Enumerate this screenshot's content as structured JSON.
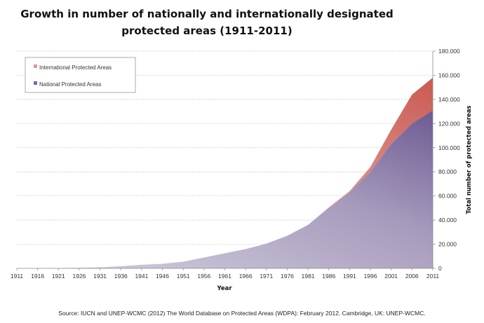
{
  "chart_data": {
    "type": "area",
    "stacked": true,
    "title": "Growth in number of nationally and internationally designated protected areas (1911-2011)",
    "title_lines": [
      "Growth in number of nationally and internationally designated",
      "protected areas (1911-2011)"
    ],
    "xlabel": "Year",
    "ylabel": "Total number of protected areas",
    "x": [
      1911,
      1916,
      1921,
      1926,
      1931,
      1936,
      1941,
      1946,
      1951,
      1956,
      1961,
      1966,
      1971,
      1976,
      1981,
      1986,
      1991,
      1996,
      2001,
      2006,
      2011
    ],
    "series": [
      {
        "name": "National Protected Areas",
        "color": "#7a6a9c",
        "values": [
          0,
          100,
          200,
          500,
          900,
          1800,
          3000,
          3800,
          5500,
          9000,
          12500,
          16000,
          20500,
          27000,
          36000,
          50000,
          63000,
          80000,
          103000,
          120000,
          131000
        ]
      },
      {
        "name": "International Protected Areas",
        "color": "#d5756b",
        "values": [
          0,
          0,
          0,
          0,
          0,
          0,
          0,
          0,
          0,
          0,
          0,
          0,
          0,
          0,
          0,
          500,
          1000,
          4000,
          12000,
          24000,
          27000
        ]
      }
    ],
    "xticks": [
      "1911",
      "1916",
      "1921",
      "1926",
      "1931",
      "1936",
      "1941",
      "1946",
      "1951",
      "1956",
      "1961",
      "1966",
      "1971",
      "1976",
      "1981",
      "1986",
      "1991",
      "1996",
      "2001",
      "2006",
      "2011"
    ],
    "yticks": [
      "0",
      "20.000",
      "40.000",
      "60.000",
      "80.000",
      "100.000",
      "120.000",
      "140.000",
      "160.000",
      "180.000"
    ],
    "xlim": [
      1911,
      2011
    ],
    "ylim": [
      0,
      180000
    ],
    "y_axis_side": "right",
    "grid": "horizontal dotted",
    "legend_position": "top-left",
    "legend": [
      "International Protected Areas",
      "National Protected Areas"
    ]
  },
  "source": "Source: IUCN and UNEP-WCMC (2012) The World Database on Protected Areas (WDPA): February 2012. Cambridge, UK: UNEP-WCMC."
}
